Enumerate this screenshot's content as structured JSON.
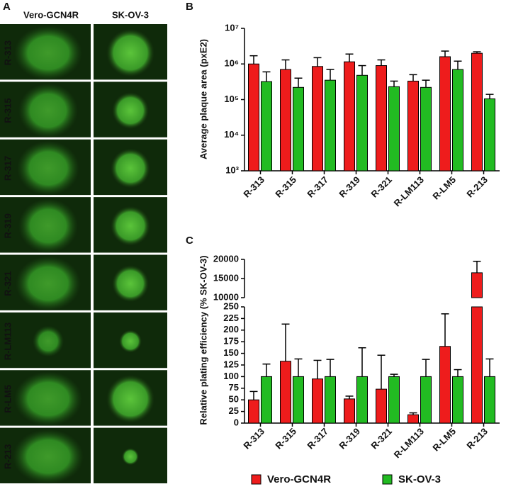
{
  "panel_labels": [
    "A",
    "B",
    "C"
  ],
  "image_grid": {
    "columns": [
      "Vero-GCN4R",
      "SK-OV-3"
    ],
    "rows": [
      "R-313",
      "R-315",
      "R-317",
      "R-319",
      "R-321",
      "R-LM113",
      "R-LM5",
      "R-213"
    ]
  },
  "chart_data": [
    {
      "type": "bar",
      "y_label": "Average plaque area (pxE2)",
      "log_scale": true,
      "categories": [
        "R-313",
        "R-315",
        "R-317",
        "R-319",
        "R-321",
        "R-LM113",
        "R-LM5",
        "R-213"
      ],
      "series": [
        {
          "color": "#ee1c1c",
          "values": [
            1000000,
            700000,
            850000,
            1150000,
            900000,
            330000,
            1600000,
            2000000
          ],
          "errors": [
            700000,
            600000,
            650000,
            750000,
            400000,
            170000,
            700000,
            200000
          ]
        },
        {
          "color": "#22bb22",
          "values": [
            320000,
            220000,
            350000,
            480000,
            230000,
            220000,
            700000,
            105000
          ],
          "errors": [
            280000,
            180000,
            350000,
            420000,
            100000,
            130000,
            500000,
            35000
          ]
        }
      ],
      "ylim": [
        1000,
        10000000
      ],
      "yticks": [
        {
          "value": 1000,
          "label": "10³"
        },
        {
          "value": 10000,
          "label": "10⁴"
        },
        {
          "value": 100000,
          "label": "10⁵"
        },
        {
          "value": 1000000,
          "label": "10⁶"
        },
        {
          "value": 10000000,
          "label": "10⁷"
        }
      ]
    },
    {
      "type": "bar",
      "y_label": "Relative plating efficiency (% SK-OV-3)",
      "categories": [
        "R-313",
        "R-315",
        "R-317",
        "R-319",
        "R-321",
        "R-LM113",
        "R-LM5",
        "R-213"
      ],
      "series": [
        {
          "name": "Vero-GCN4R",
          "color": "#ee1c1c",
          "values": [
            50,
            133,
            95,
            52,
            73,
            18,
            165,
            16500
          ],
          "errors": [
            18,
            80,
            40,
            6,
            73,
            4,
            70,
            3000
          ]
        },
        {
          "name": "SK-OV-3",
          "color": "#22bb22",
          "values": [
            100,
            100,
            100,
            100,
            100,
            100,
            100,
            100
          ],
          "errors": [
            27,
            38,
            37,
            62,
            5,
            37,
            15,
            38
          ]
        }
      ],
      "ylim": [
        0,
        250
      ],
      "yticks": [
        0,
        25,
        50,
        75,
        100,
        125,
        150,
        175,
        200,
        225,
        250
      ],
      "axis_break": {
        "ylim": [
          10000,
          20000
        ],
        "yticks": [
          10000,
          15000,
          20000
        ]
      }
    }
  ]
}
